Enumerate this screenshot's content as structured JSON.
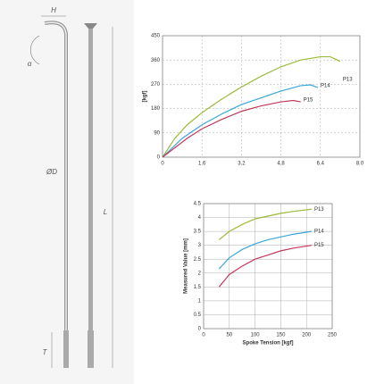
{
  "drawing": {
    "labels": [
      "H",
      "α",
      "ØD",
      "L",
      "T"
    ]
  },
  "chart_data": [
    {
      "type": "line",
      "ylabel": "[kgf]",
      "xlim": [
        0,
        8
      ],
      "xticks": [
        0,
        1.6,
        3.2,
        4.8,
        6.4,
        {
          "value": 8,
          "label": "8.0"
        }
      ],
      "ylim": [
        0,
        450
      ],
      "yticks": [
        0,
        90,
        180,
        270,
        360,
        450
      ],
      "grid": "dashed",
      "series": [
        {
          "name": "P13",
          "color": "#9bbb3c",
          "x": [
            0,
            0.5,
            1,
            1.6,
            2.4,
            3.2,
            4,
            4.8,
            5.6,
            6.4,
            6.8,
            7.2
          ],
          "values": [
            0,
            70,
            120,
            165,
            215,
            260,
            300,
            335,
            360,
            372,
            372,
            355
          ]
        },
        {
          "name": "P14",
          "color": "#3aa7d8",
          "x": [
            0,
            0.8,
            1.6,
            2.4,
            3.2,
            4,
            4.8,
            5.6,
            6,
            6.3
          ],
          "values": [
            0,
            70,
            120,
            160,
            195,
            220,
            245,
            265,
            268,
            258
          ]
        },
        {
          "name": "P15",
          "color": "#c0395a",
          "x": [
            0,
            1,
            1.6,
            2.4,
            3.2,
            4,
            4.8,
            5.3,
            5.6
          ],
          "values": [
            0,
            70,
            105,
            140,
            170,
            190,
            205,
            210,
            205
          ]
        }
      ]
    },
    {
      "type": "line",
      "xlabel": "Spoke Tension [kgf]",
      "ylabel": "Measured Value [mm]",
      "xlim": [
        0,
        250
      ],
      "xticks": [
        0,
        50,
        100,
        150,
        200,
        250
      ],
      "ylim": [
        0,
        4.5
      ],
      "yticks": [
        0,
        0.5,
        1,
        1.5,
        2,
        2.5,
        3,
        3.5,
        4,
        4.5
      ],
      "grid": "solid",
      "series": [
        {
          "name": "P13",
          "color": "#9bbb3c",
          "x": [
            30,
            50,
            75,
            100,
            125,
            150,
            175,
            210
          ],
          "values": [
            3.2,
            3.5,
            3.75,
            3.95,
            4.05,
            4.15,
            4.22,
            4.3
          ]
        },
        {
          "name": "P14",
          "color": "#3aa7d8",
          "x": [
            30,
            50,
            75,
            100,
            125,
            150,
            175,
            210
          ],
          "values": [
            2.15,
            2.55,
            2.85,
            3.05,
            3.2,
            3.3,
            3.4,
            3.5
          ]
        },
        {
          "name": "P15",
          "color": "#c0395a",
          "x": [
            30,
            50,
            75,
            100,
            125,
            150,
            175,
            210
          ],
          "values": [
            1.5,
            1.95,
            2.25,
            2.5,
            2.65,
            2.8,
            2.9,
            3.0
          ]
        }
      ]
    }
  ]
}
